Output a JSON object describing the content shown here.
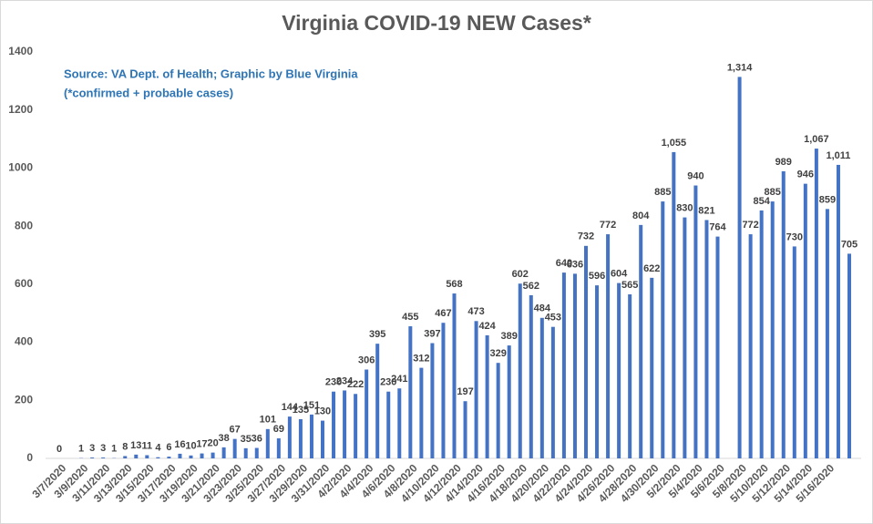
{
  "chart_data": {
    "type": "bar",
    "title": "Virginia COVID-19 NEW Cases*",
    "annotations": [
      "Source: VA Dept. of Health; Graphic by Blue Virginia",
      "(*confirmed + probable cases)"
    ],
    "color": "#4472c4",
    "categories": [
      "3/7/2020",
      null,
      "3/9/2020",
      null,
      "3/11/2020",
      null,
      "3/13/2020",
      null,
      "3/15/2020",
      null,
      "3/17/2020",
      null,
      "3/19/2020",
      null,
      "3/21/2020",
      null,
      "3/23/2020",
      null,
      "3/25/2020",
      null,
      "3/27/2020",
      null,
      "3/29/2020",
      null,
      "3/31/2020",
      null,
      "4/2/2020",
      null,
      "4/4/2020",
      null,
      "4/6/2020",
      null,
      "4/8/2020",
      null,
      "4/10/2020",
      null,
      "4/12/2020",
      null,
      "4/14/2020",
      null,
      "4/16/2020",
      null,
      "4/18/2020",
      null,
      "4/20/2020",
      null,
      "4/22/2020",
      null,
      "4/24/2020",
      null,
      "4/26/2020",
      null,
      "4/28/2020",
      null,
      "4/30/2020",
      null,
      "5/2/2020",
      null,
      "5/4/2020",
      null,
      "5/6/2020",
      null,
      "5/8/2020",
      null,
      "5/10/2020",
      null,
      "5/12/2020",
      null,
      "5/14/2020",
      null,
      "5/16/2020",
      null,
      null
    ],
    "values": [
      0,
      null,
      1,
      3,
      3,
      1,
      8,
      13,
      11,
      4,
      6,
      16,
      10,
      17,
      20,
      38,
      67,
      35,
      36,
      101,
      69,
      144,
      135,
      151,
      130,
      230,
      234,
      222,
      306,
      395,
      230,
      241,
      455,
      312,
      397,
      467,
      568,
      197,
      473,
      424,
      329,
      389,
      602,
      562,
      484,
      453,
      640,
      636,
      732,
      596,
      772,
      604,
      565,
      804,
      622,
      885,
      1055,
      830,
      940,
      821,
      764,
      null,
      1314,
      772,
      854,
      885,
      989,
      730,
      946,
      1067,
      859,
      1011,
      705
    ],
    "value_labels": [
      "0",
      null,
      "1",
      "3",
      "3",
      "1",
      "8",
      "13",
      "11",
      "4",
      "6",
      "16",
      "10",
      "17",
      "20",
      "38",
      "67",
      "35",
      "36",
      "101",
      "69",
      "144",
      "135",
      "151",
      "130",
      "230",
      "234",
      "222",
      "306",
      "395",
      "230",
      "241",
      "455",
      "312",
      "397",
      "467",
      "568",
      "197",
      "473",
      "424",
      "329",
      "389",
      "602",
      "562",
      "484",
      "453",
      "640",
      "636",
      "732",
      "596",
      "772",
      "604",
      "565",
      "804",
      "622",
      "885",
      "1,055",
      "830",
      "940",
      "821",
      "764",
      null,
      "1,314",
      "772",
      "854",
      "885",
      "989",
      "730",
      "946",
      "1,067",
      "859",
      "1,011",
      "705"
    ],
    "ylim": [
      0,
      1400
    ],
    "yticks": [
      0,
      200,
      400,
      600,
      800,
      1000,
      1200,
      1400
    ],
    "grid": false
  }
}
